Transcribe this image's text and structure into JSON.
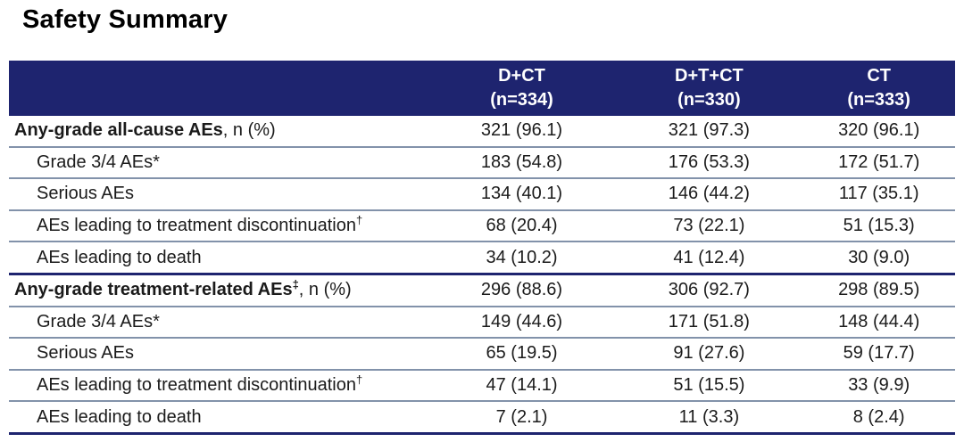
{
  "page": {
    "title": "Safety Summary"
  },
  "colors": {
    "header_bg": "#1e246f",
    "divider_thin": "#8292aa",
    "divider_thick": "#1e246f",
    "text": "#1b1b1b"
  },
  "table": {
    "header": {
      "columns": [
        {
          "name": "D+CT",
          "n": "(n=334)"
        },
        {
          "name": "D+T+CT",
          "n": "(n=330)"
        },
        {
          "name": "CT",
          "n": "(n=333)"
        }
      ]
    },
    "rows": [
      {
        "label": "Any-grade all-cause AEs",
        "sup": "",
        "suffix": ", n (%)",
        "bold": true,
        "indent": false,
        "values": [
          "321 (96.1)",
          "321 (97.3)",
          "320 (96.1)"
        ]
      },
      {
        "label": "Grade 3/4 AEs*",
        "sup": "",
        "suffix": "",
        "bold": false,
        "indent": true,
        "values": [
          "183 (54.8)",
          "176 (53.3)",
          "172 (51.7)"
        ]
      },
      {
        "label": "Serious AEs",
        "sup": "",
        "suffix": "",
        "bold": false,
        "indent": true,
        "values": [
          "134 (40.1)",
          "146 (44.2)",
          "117 (35.1)"
        ]
      },
      {
        "label": "AEs leading to treatment discontinuation",
        "sup": "†",
        "suffix": "",
        "bold": false,
        "indent": true,
        "values": [
          "68 (20.4)",
          "73 (22.1)",
          "51 (15.3)"
        ]
      },
      {
        "label": "AEs leading to death",
        "sup": "",
        "suffix": "",
        "bold": false,
        "indent": true,
        "values": [
          "34 (10.2)",
          "41 (12.4)",
          "30 (9.0)"
        ]
      },
      {
        "label": "Any-grade treatment-related AEs",
        "sup": "‡",
        "suffix": ", n (%)",
        "bold": true,
        "indent": false,
        "values": [
          "296 (88.6)",
          "306 (92.7)",
          "298 (89.5)"
        ]
      },
      {
        "label": "Grade 3/4 AEs*",
        "sup": "",
        "suffix": "",
        "bold": false,
        "indent": true,
        "values": [
          "149 (44.6)",
          "171 (51.8)",
          "148 (44.4)"
        ]
      },
      {
        "label": "Serious AEs",
        "sup": "",
        "suffix": "",
        "bold": false,
        "indent": true,
        "values": [
          "65 (19.5)",
          "91 (27.6)",
          "59 (17.7)"
        ]
      },
      {
        "label": "AEs leading to treatment discontinuation",
        "sup": "†",
        "suffix": "",
        "bold": false,
        "indent": true,
        "values": [
          "47 (14.1)",
          "51 (15.5)",
          "33 (9.9)"
        ]
      },
      {
        "label": "AEs leading to death",
        "sup": "",
        "suffix": "",
        "bold": false,
        "indent": true,
        "values": [
          "7 (2.1)",
          "11 (3.3)",
          "8 (2.4)"
        ]
      }
    ]
  }
}
